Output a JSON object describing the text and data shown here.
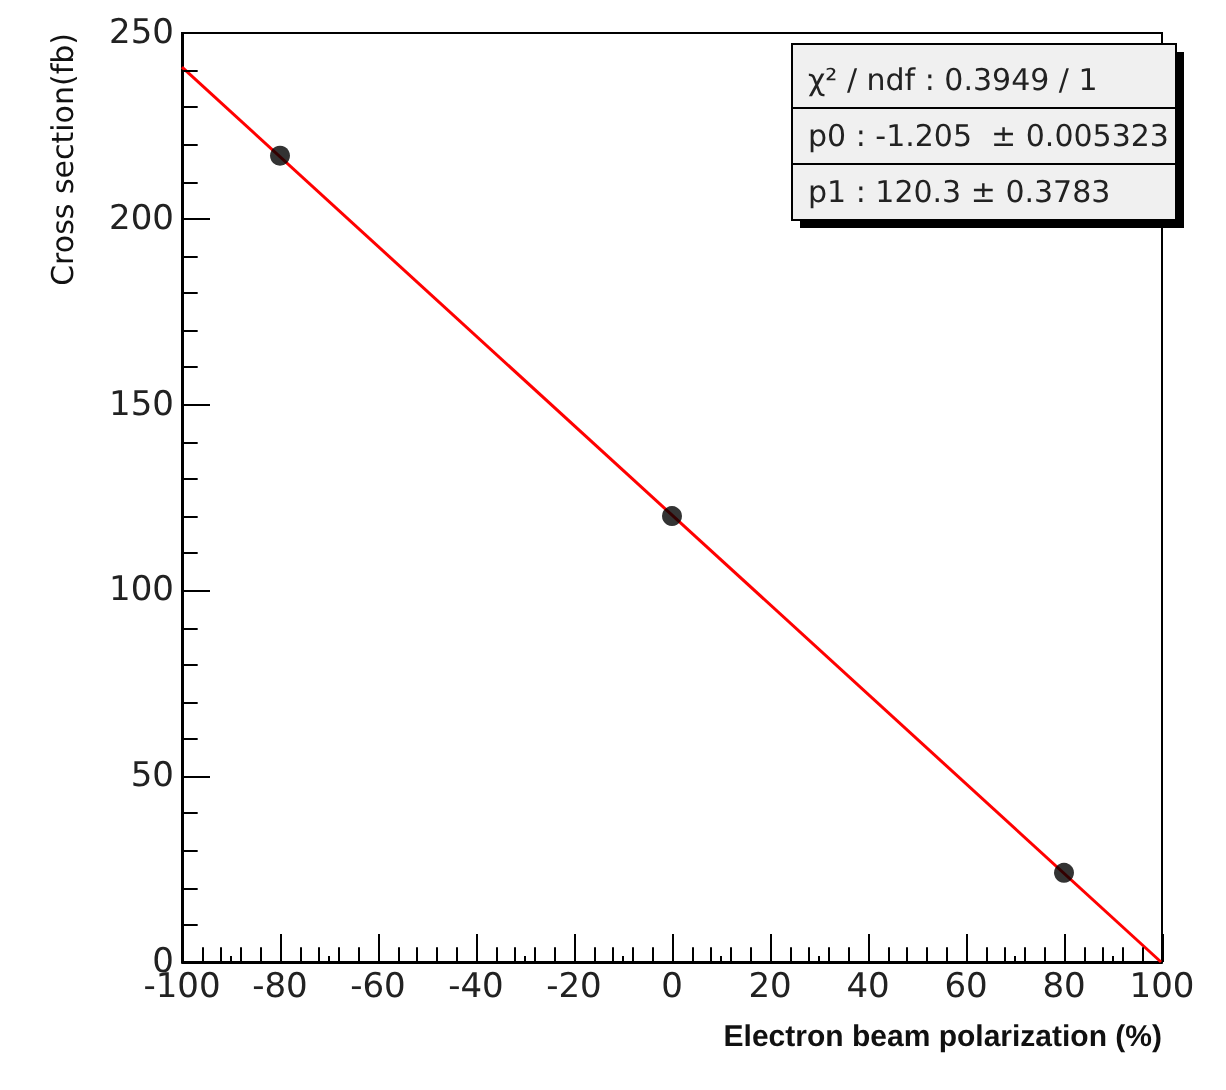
{
  "chart_data": {
    "type": "scatter",
    "xlabel": "Electron beam polarization (%)",
    "ylabel": "Cross section(fb)",
    "x": [
      -80,
      0,
      80
    ],
    "series": [
      {
        "color": "#000000",
        "values": [
          217,
          120,
          24
        ]
      },
      {
        "type": "line",
        "marker": "none",
        "color": "#ff0000",
        "x": [
          -100,
          99.8
        ],
        "values": [
          240.8,
          0
        ]
      }
    ],
    "xlim": [
      -100,
      100
    ],
    "xticks": [
      -100,
      -80,
      -60,
      -40,
      -20,
      0,
      20,
      40,
      60,
      80,
      100
    ],
    "ylim": [
      0,
      250
    ],
    "yticks": [
      0,
      50,
      100,
      150,
      200,
      250
    ],
    "grid": false,
    "marker": "circle",
    "annotations": [
      "χ² / ndf : 0.3949 / 1",
      "p0 : -1.205  ± 0.005323",
      "p1 : 120.3 ± 0.3783"
    ]
  }
}
